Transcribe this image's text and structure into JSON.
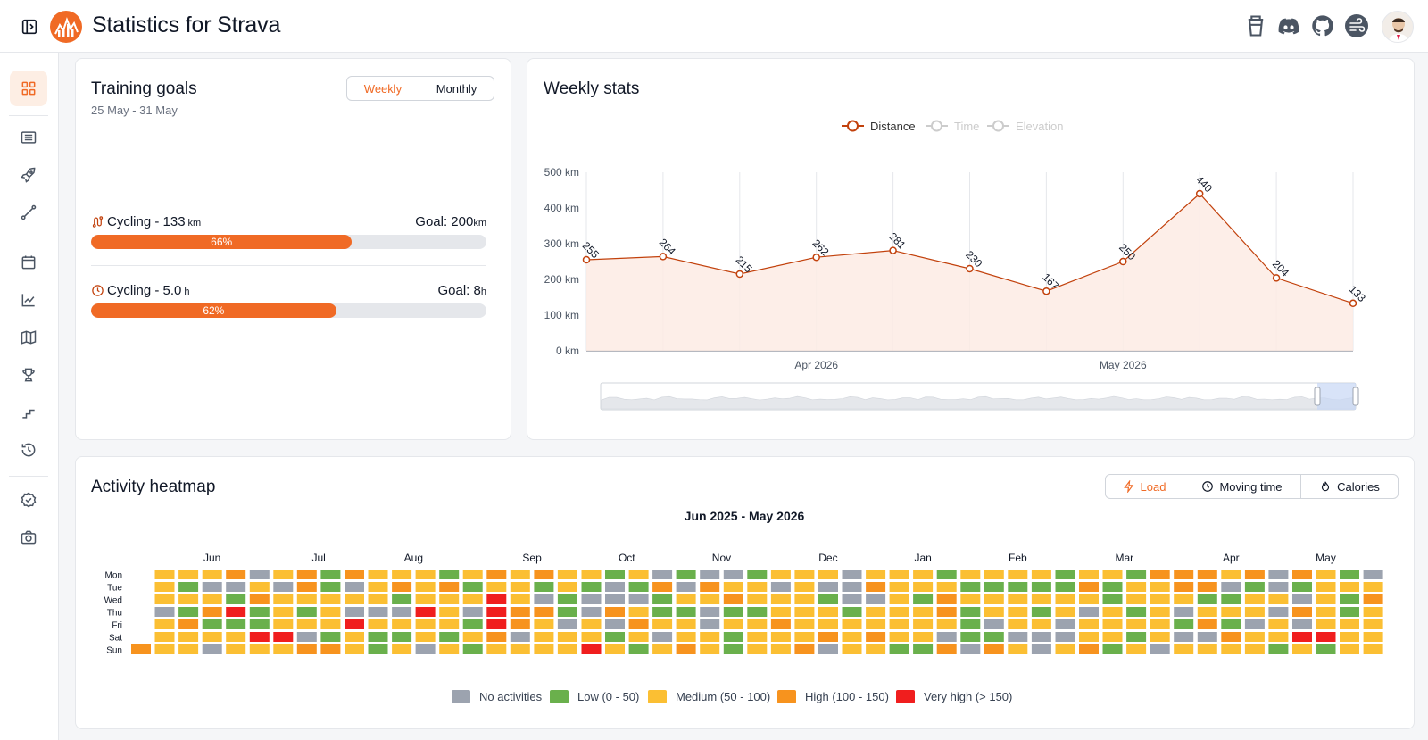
{
  "app": {
    "title": "Statistics for Strava"
  },
  "header": {
    "icons": [
      "sidebar-toggle-icon",
      "coffee-icon",
      "discord-icon",
      "github-icon",
      "wind-icon"
    ]
  },
  "sidebar": {
    "items": [
      "dashboard-icon",
      "activities-list-icon",
      "rocket-icon",
      "segments-icon",
      "calendar-icon",
      "trend-chart-icon",
      "map-icon",
      "trophy-icon",
      "stairs-icon",
      "history-icon",
      "badge-check-icon",
      "camera-icon"
    ]
  },
  "training_goals": {
    "title": "Training goals",
    "date_range": "25 May - 31 May",
    "tabs": [
      "Weekly",
      "Monthly"
    ],
    "active_tab": "Weekly",
    "goals": [
      {
        "icon": "route-icon",
        "label": "Cycling - 133",
        "unit": "km",
        "goal_label": "Goal: 200",
        "goal_unit": "km",
        "percent_text": "66%",
        "progress": 0.66
      },
      {
        "icon": "clock-icon",
        "label": "Cycling - 5.0",
        "unit": "h",
        "goal_label": "Goal: 8",
        "goal_unit": "h",
        "percent_text": "62%",
        "progress": 0.62
      }
    ]
  },
  "weekly_stats": {
    "title": "Weekly stats",
    "legend": [
      {
        "name": "Distance",
        "active": true,
        "color": "#c2410c"
      },
      {
        "name": "Time",
        "active": false,
        "color": "#cccccc"
      },
      {
        "name": "Elevation",
        "active": false,
        "color": "#cccccc"
      }
    ]
  },
  "chart_data": {
    "type": "area",
    "series": [
      {
        "name": "Distance",
        "values": [
          255,
          264,
          215,
          262,
          281,
          230,
          167,
          250,
          440,
          204,
          133
        ]
      }
    ],
    "y_ticks": [
      "0 km",
      "100 km",
      "200 km",
      "300 km",
      "400 km",
      "500 km"
    ],
    "ylim": [
      0,
      500
    ],
    "x_tick_labels": [
      "Apr 2026",
      "May 2026"
    ],
    "point_labels": [
      "255",
      "264",
      "215",
      "262",
      "281",
      "230",
      "167",
      "250",
      "440",
      "204",
      "133"
    ],
    "line_color": "#c2410c",
    "fill_color": "#fdebe4",
    "grid": true,
    "legend_position": "top-center"
  },
  "heatmap": {
    "title": "Activity heatmap",
    "tabs": [
      {
        "label": "Load",
        "icon": "bolt-icon"
      },
      {
        "label": "Moving time",
        "icon": "clock-icon"
      },
      {
        "label": "Calories",
        "icon": "flame-icon"
      }
    ],
    "active_tab": "Load",
    "subtitle": "Jun 2025 - May 2026",
    "months": [
      "Jun",
      "Jul",
      "Aug",
      "Sep",
      "Oct",
      "Nov",
      "Dec",
      "Jan",
      "Feb",
      "Mar",
      "Apr",
      "May"
    ],
    "days": [
      "Mon",
      "Tue",
      "Wed",
      "Thu",
      "Fri",
      "Sat",
      "Sun"
    ],
    "legend": [
      {
        "label": "No activities",
        "color": "#9ca3af"
      },
      {
        "label": "Low (0 - 50)",
        "color": "#6ab04c"
      },
      {
        "label": "Medium (50 - 100)",
        "color": "#fbbf33"
      },
      {
        "label": "High (100 - 150)",
        "color": "#f7931e"
      },
      {
        "label": "Very high (> 150)",
        "color": "#f01e1e"
      }
    ]
  }
}
